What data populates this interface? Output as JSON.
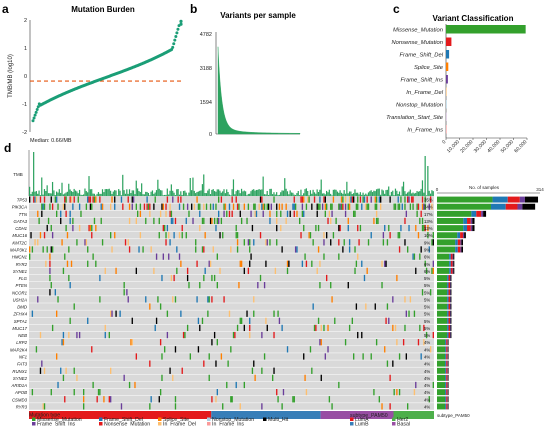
{
  "panels": {
    "a": "a",
    "b": "b",
    "c": "c",
    "d": "d"
  },
  "colors": {
    "Missense_Mutation": "#33a02c",
    "Nonsense_Mutation": "#e31a1c",
    "Frame_Shift_Del": "#1f78b4",
    "Splice_Site": "#ff7f00",
    "Frame_Shift_Ins": "#6a3d9a",
    "In_Frame_Del": "#fdbf6f",
    "Nonstop_Mutation": "#a6cee3",
    "Translation_Start_Site": "#cab2d6",
    "In_Frame_Ins": "#fb9a99",
    "Multi_Hit": "#000000",
    "burden_point": "#1b9e77",
    "median_line": "#e6550d",
    "variant_fill": "#2ca25f",
    "LumA": "#e41a1c",
    "LumB": "#377eb8",
    "Her2": "#4daf4a",
    "Basal": "#984ea3",
    "background": "#d9d9d9"
  },
  "chart_data": [
    {
      "id": "a",
      "type": "scatter",
      "title": "Mutation Burden",
      "ylabel": "TMB/MB (log10)",
      "ylim": [
        -2,
        2
      ],
      "yticks": [
        "-2",
        "-1",
        "0",
        "1",
        "2"
      ],
      "median_label": "Median: 0.66/MB",
      "median_value": -0.18
    },
    {
      "id": "b",
      "type": "area",
      "title": "Variants per sample",
      "ylim": [
        0,
        4782
      ],
      "yticks": [
        "0",
        "1594",
        "3188",
        "4782"
      ]
    },
    {
      "id": "c",
      "type": "bar",
      "orientation": "horizontal",
      "title": "Variant Classification",
      "categories": [
        "Missense_Mutation",
        "Nonsense_Mutation",
        "Frame_Shift_Del",
        "Splice_Site",
        "Frame_Shift_Ins",
        "In_Frame_Del",
        "Nonstop_Mutation",
        "Translation_Start_Site",
        "In_Frame_Ins"
      ],
      "values": [
        59000,
        4000,
        2300,
        1700,
        1400,
        400,
        80,
        60,
        40
      ],
      "xlim": [
        0,
        60000
      ],
      "xticks": [
        "0",
        "10,000",
        "20,000",
        "30,000",
        "40,000",
        "50,000",
        "60,000"
      ]
    },
    {
      "id": "d",
      "type": "heatmap",
      "tmb_label": "TMB",
      "samples_label": "No. of samples",
      "samples_ticks": [
        "0",
        "314"
      ],
      "samples_max": 314,
      "genes": [
        "TP53",
        "PIK3CA",
        "TTN",
        "GATA3",
        "CDH1",
        "MUC16",
        "KMT2C",
        "MAP3K1",
        "HMCN1",
        "RYR2",
        "SYNE1",
        "FLG",
        "PTEN",
        "NCOR1",
        "USH2A",
        "DMD",
        "ZFHX4",
        "SPTA1",
        "MUC17",
        "NEB",
        "LRP2",
        "MAP2K4",
        "NF1",
        "FAT3",
        "RUNX1",
        "SYNE2",
        "ARID1A",
        "APOB",
        "CSMD3",
        "RYR3"
      ],
      "percent": [
        "35%",
        "34%",
        "17%",
        "13%",
        "13%",
        "10%",
        "9%",
        "9%",
        "6%",
        "6%",
        "6%",
        "5%",
        "5%",
        "5%",
        "5%",
        "5%",
        "5%",
        "5%",
        "5%",
        "5%",
        "4%",
        "4%",
        "4%",
        "4%",
        "4%",
        "4%",
        "4%",
        "4%",
        "4%",
        "4%"
      ],
      "percent_values": [
        35,
        34,
        17,
        13,
        13,
        10,
        9,
        9,
        6,
        6,
        6,
        5,
        5,
        5,
        5,
        5,
        5,
        5,
        5,
        5,
        4,
        4,
        4,
        4,
        4,
        4,
        4,
        4,
        4,
        4
      ],
      "subtype_label": "subtype_PAM50",
      "subtype_fractions": [
        {
          "name": "LumA",
          "fraction": 0.45
        },
        {
          "name": "LumB",
          "fraction": 0.27
        },
        {
          "name": "Basal",
          "fraction": 0.18
        },
        {
          "name": "Her2",
          "fraction": 0.1
        }
      ]
    }
  ],
  "legend": {
    "mutation_title": "Mutation type",
    "mutation_items": [
      {
        "label": "Missense_Mutation",
        "key": "Missense_Mutation"
      },
      {
        "label": "Frame_Shift_Del",
        "key": "Frame_Shift_Del"
      },
      {
        "label": "Splice_Site",
        "key": "Splice_Site"
      },
      {
        "label": "Nonstop_Mutation",
        "key": "Nonstop_Mutation"
      },
      {
        "label": "Multi_Hit",
        "key": "Multi_Hit"
      },
      {
        "label": "Frame_Shift_Ins",
        "key": "Frame_Shift_Ins"
      },
      {
        "label": "Nonsense_Mutation",
        "key": "Nonsense_Mutation"
      },
      {
        "label": "In_Frame_Del",
        "key": "In_Frame_Del"
      },
      {
        "label": "In_Frame_Ins",
        "key": "In_Frame_Ins"
      }
    ],
    "subtype_title": "subtype_PAM50",
    "subtype_items": [
      {
        "label": "LumA",
        "key": "LumA"
      },
      {
        "label": "Her2",
        "key": "Her2"
      },
      {
        "label": "LumB",
        "key": "LumB"
      },
      {
        "label": "Basal",
        "key": "Basal"
      }
    ]
  }
}
